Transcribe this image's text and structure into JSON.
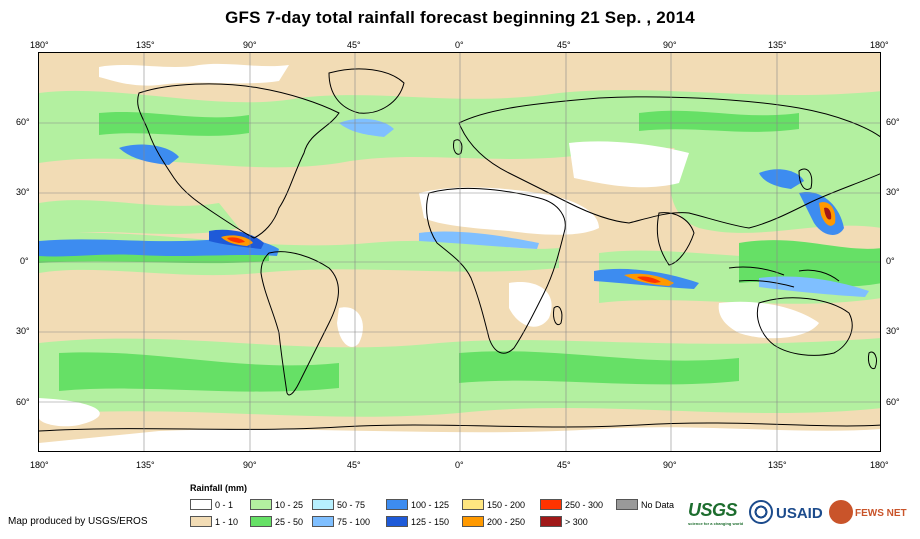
{
  "title": "GFS 7-day total rainfall forecast beginning 21 Sep. , 2014",
  "lon_labels": [
    "180°",
    "135°",
    "90°",
    "45°",
    "0°",
    "45°",
    "90°",
    "135°",
    "180°"
  ],
  "lat_labels_left": [
    "60°",
    "30°",
    "0°",
    "30°",
    "60°"
  ],
  "lat_labels_right": [
    "60°",
    "30°",
    "0°",
    "30°",
    "60°"
  ],
  "legend": {
    "title": "Rainfall (mm)",
    "items": [
      {
        "label": "0 - 1",
        "color": "#ffffff"
      },
      {
        "label": "1 - 10",
        "color": "#f2dcb5"
      },
      {
        "label": "10 - 25",
        "color": "#b3f0a0"
      },
      {
        "label": "25 - 50",
        "color": "#66e066"
      },
      {
        "label": "50 - 75",
        "color": "#b7f0ff"
      },
      {
        "label": "75 - 100",
        "color": "#7fbfff"
      },
      {
        "label": "100 - 125",
        "color": "#3d8cf0"
      },
      {
        "label": "125 - 150",
        "color": "#1e5ad8"
      },
      {
        "label": "150 - 200",
        "color": "#ffe680"
      },
      {
        "label": "200 - 250",
        "color": "#ff9900"
      },
      {
        "label": "250 - 300",
        "color": "#ff3300"
      },
      {
        "label": "> 300",
        "color": "#a01818"
      },
      {
        "label": "No Data",
        "color": "#999999"
      }
    ]
  },
  "credit": "Map produced by USGS/EROS",
  "logos": {
    "usgs": "USGS",
    "usgs_tagline": "science for a changing world",
    "usaid": "USAID",
    "fews": "FEWS NET"
  }
}
